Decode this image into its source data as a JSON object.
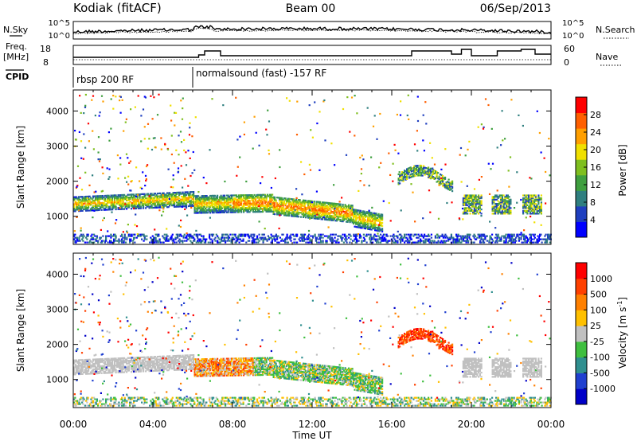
{
  "header": {
    "station": "Kodiak (fitACF)",
    "beam": "Beam 00",
    "date": "06/Sep/2013"
  },
  "aux_panels": {
    "nsky_label": "N.Sky",
    "nsky_ticks": [
      "10^5",
      "10^0"
    ],
    "nsearch_label": "N.Search",
    "nsearch_ticks": [
      "10^5",
      "10^0"
    ],
    "freq_label": "Freq.",
    "freq_unit": "[MHz]",
    "freq_ticks": [
      "18",
      "8"
    ],
    "nave_label": "Nave",
    "nave_ticks": [
      "60",
      "0"
    ],
    "cpid_label": "CPID",
    "cpid_segments": [
      {
        "label": "rbsp 200 RF",
        "start_hour": 0,
        "end_hour": 6
      },
      {
        "label": "normalsound (fast) -157 RF",
        "start_hour": 6,
        "end_hour": 24
      }
    ]
  },
  "chart_data": [
    {
      "type": "heatmap",
      "panel": "power",
      "ylabel": "Slant Range [km]",
      "xlabel": "Time UT",
      "x_ticks": [
        "00:00",
        "04:00",
        "08:00",
        "12:00",
        "16:00",
        "20:00",
        "00:00"
      ],
      "xlim_hours": [
        0,
        24
      ],
      "ylim": [
        200,
        4600
      ],
      "y_ticks": [
        1000,
        2000,
        3000,
        4000
      ],
      "colorbar": {
        "label": "Power [dB]",
        "ticks": [
          "28",
          "24",
          "20",
          "16",
          "12",
          "8",
          "4"
        ],
        "colors": [
          "#0000ff",
          "#1f3fbf",
          "#2f7f7f",
          "#3f9f3f",
          "#7fbf1f",
          "#f0e000",
          "#ff9f00",
          "#ff5f00",
          "#ff0000"
        ]
      }
    },
    {
      "type": "heatmap",
      "panel": "velocity",
      "ylabel": "Slant Range [km]",
      "xlabel": "Time UT",
      "x_ticks": [
        "00:00",
        "04:00",
        "08:00",
        "12:00",
        "16:00",
        "20:00",
        "00:00"
      ],
      "xlim_hours": [
        0,
        24
      ],
      "ylim": [
        200,
        4600
      ],
      "y_ticks": [
        1000,
        2000,
        3000,
        4000
      ],
      "colorbar": {
        "label": "Velocity [m s",
        "label_sup": "-1",
        "label_end": "]",
        "ticks": [
          "1000",
          "500",
          "100",
          "25",
          "-25",
          "-100",
          "-500",
          "-1000"
        ],
        "colors": [
          "#0000c8",
          "#2040d0",
          "#2f8f8f",
          "#3fbf3f",
          "#c0c0c0",
          "#ffc000",
          "#ff8000",
          "#ff4000",
          "#ff0000"
        ]
      }
    }
  ],
  "x_axis_title": "Time UT"
}
